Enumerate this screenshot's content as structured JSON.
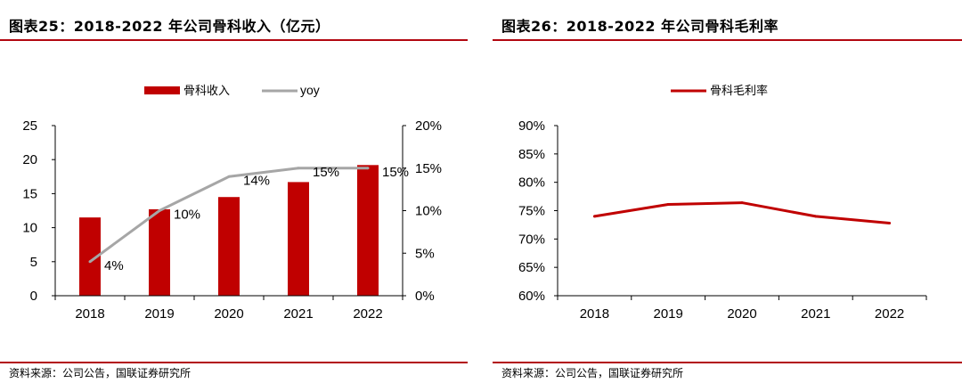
{
  "colors": {
    "accent": "#b20710",
    "bar": "#c00000",
    "yoy_line": "#a6a6a6",
    "margin_line": "#c00000",
    "axis": "#000000"
  },
  "left": {
    "title": "图表25：2018-2022 年公司骨科收入（亿元）",
    "source": "资料来源：公司公告，国联证券研究所"
  },
  "right": {
    "title": "图表26：2018-2022 年公司骨科毛利率",
    "source": "资料来源：公司公告，国联证券研究所"
  },
  "chart_data": [
    {
      "type": "bar",
      "title": "2018-2022 年公司骨科收入（亿元）",
      "categories": [
        "2018",
        "2019",
        "2020",
        "2021",
        "2022"
      ],
      "series": [
        {
          "name": "骨科收入",
          "type": "bar",
          "axis": "left",
          "values": [
            11.5,
            12.7,
            14.5,
            16.7,
            19.2
          ]
        },
        {
          "name": "yoy",
          "type": "line",
          "axis": "right",
          "values": [
            4,
            10,
            14,
            15,
            15
          ],
          "labels": [
            "4%",
            "10%",
            "14%",
            "15%",
            "15%"
          ]
        }
      ],
      "ylim": [
        0,
        25
      ],
      "y_ticks": [
        "0",
        "5",
        "10",
        "15",
        "20",
        "25"
      ],
      "y2lim": [
        0,
        20
      ],
      "y2_ticks": [
        "0%",
        "5%",
        "10%",
        "15%",
        "20%"
      ],
      "legend": "top-center"
    },
    {
      "type": "line",
      "title": "2018-2022 年公司骨科毛利率",
      "categories": [
        "2018",
        "2019",
        "2020",
        "2021",
        "2022"
      ],
      "series": [
        {
          "name": "骨科毛利率",
          "values": [
            74.0,
            76.1,
            76.4,
            74.0,
            72.8
          ]
        }
      ],
      "ylim": [
        60,
        90
      ],
      "y_ticks": [
        "60%",
        "65%",
        "70%",
        "75%",
        "80%",
        "85%",
        "90%"
      ],
      "legend": "top-center"
    }
  ]
}
